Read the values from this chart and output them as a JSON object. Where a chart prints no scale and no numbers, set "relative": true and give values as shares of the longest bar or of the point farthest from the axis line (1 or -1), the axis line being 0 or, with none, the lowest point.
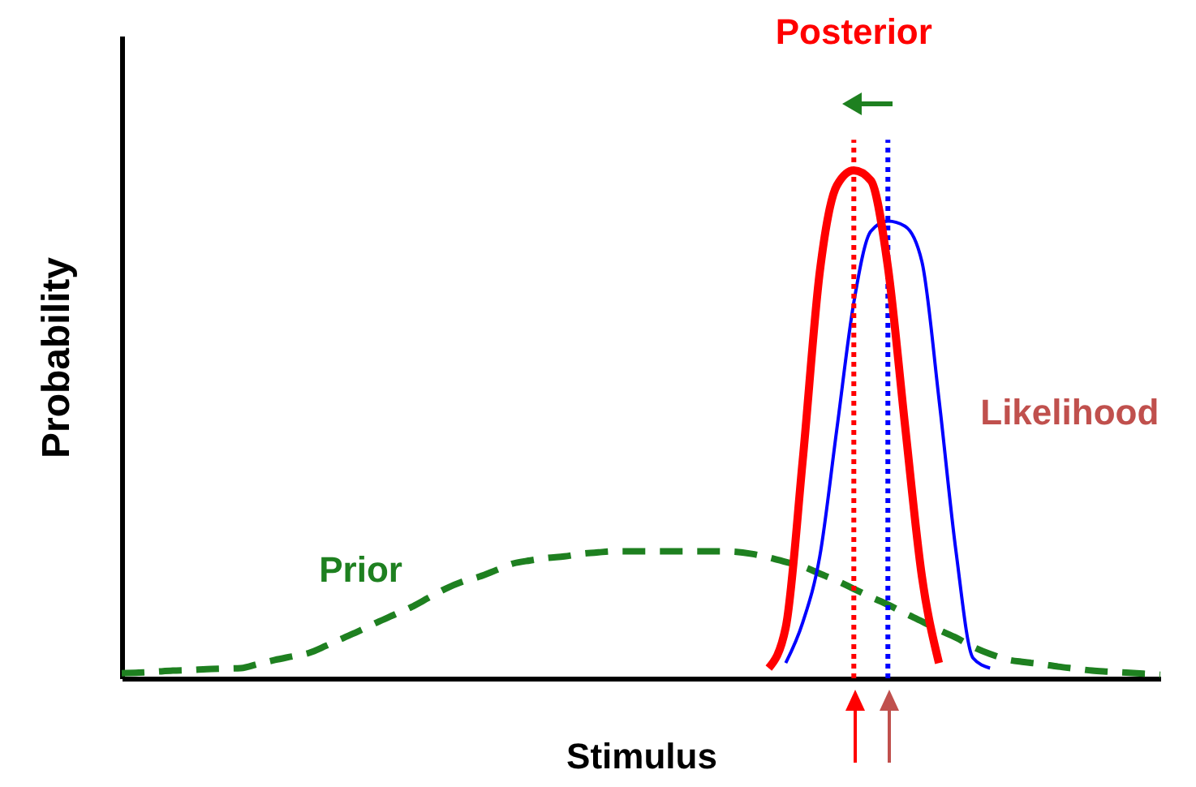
{
  "chart_data": {
    "type": "line",
    "xlabel": "Stimulus",
    "ylabel": "Probability",
    "relative": true,
    "legend": false,
    "marker": "none",
    "categories": [
      null,
      null,
      null,
      null,
      null,
      null,
      null,
      null,
      null,
      null,
      null,
      null,
      null,
      null,
      null,
      null,
      null,
      null,
      null,
      null,
      null,
      null,
      null,
      null,
      null,
      null,
      null,
      null,
      null,
      null,
      null,
      null,
      null,
      null,
      null,
      null,
      null,
      null,
      null,
      null,
      null,
      null,
      null,
      null,
      null,
      null,
      null,
      null,
      null,
      null,
      null,
      null,
      null,
      null,
      null,
      null,
      null,
      null,
      null,
      null,
      null,
      null
    ],
    "series": [
      {
        "name": "Prior",
        "color": "#1e8020",
        "line_style": "dashed",
        "values": [
          0.01,
          0.011,
          0.013,
          0.015,
          0.016,
          0.018,
          0.019,
          0.02,
          0.028,
          0.036,
          0.043,
          0.05,
          0.064,
          0.079,
          0.094,
          0.11,
          0.125,
          0.14,
          0.158,
          0.176,
          0.19,
          0.2,
          0.213,
          0.226,
          0.232,
          0.237,
          0.24,
          0.245,
          0.248,
          0.25,
          0.25,
          0.25,
          0.25,
          0.25,
          0.25,
          0.25,
          0.249,
          0.245,
          0.238,
          0.229,
          0.22,
          0.206,
          0.192,
          0.176,
          0.16,
          0.145,
          0.128,
          0.112,
          0.095,
          0.08,
          0.062,
          0.048,
          0.037,
          0.032,
          0.028,
          0.023,
          0.019,
          0.015,
          0.013,
          0.011,
          0.009,
          0.007
        ]
      },
      {
        "name": "Likelihood",
        "color": "#0000ff",
        "line_style": "solid",
        "values": [
          null,
          null,
          null,
          null,
          null,
          null,
          null,
          null,
          null,
          null,
          null,
          null,
          null,
          null,
          null,
          null,
          null,
          null,
          null,
          null,
          null,
          null,
          null,
          null,
          null,
          null,
          null,
          null,
          null,
          null,
          null,
          null,
          null,
          null,
          null,
          null,
          null,
          null,
          null,
          0.03,
          0.11,
          0.24,
          0.49,
          0.74,
          0.88,
          0.9,
          0.89,
          0.82,
          0.55,
          0.25,
          0.04,
          0.02,
          null,
          null,
          null,
          null,
          null,
          null,
          null,
          null,
          null,
          null
        ]
      },
      {
        "name": "Posterior",
        "color": "#ff0000",
        "line_style": "solid",
        "values": [
          null,
          null,
          null,
          null,
          null,
          null,
          null,
          null,
          null,
          null,
          null,
          null,
          null,
          null,
          null,
          null,
          null,
          null,
          null,
          null,
          null,
          null,
          null,
          null,
          null,
          null,
          null,
          null,
          null,
          null,
          null,
          null,
          null,
          null,
          null,
          null,
          null,
          null,
          0.02,
          0.1,
          0.43,
          0.8,
          0.97,
          1.0,
          0.98,
          0.81,
          0.5,
          0.2,
          0.03,
          null,
          null,
          null,
          null,
          null,
          null,
          null,
          null,
          null,
          null,
          null,
          null,
          null
        ]
      }
    ]
  }
}
